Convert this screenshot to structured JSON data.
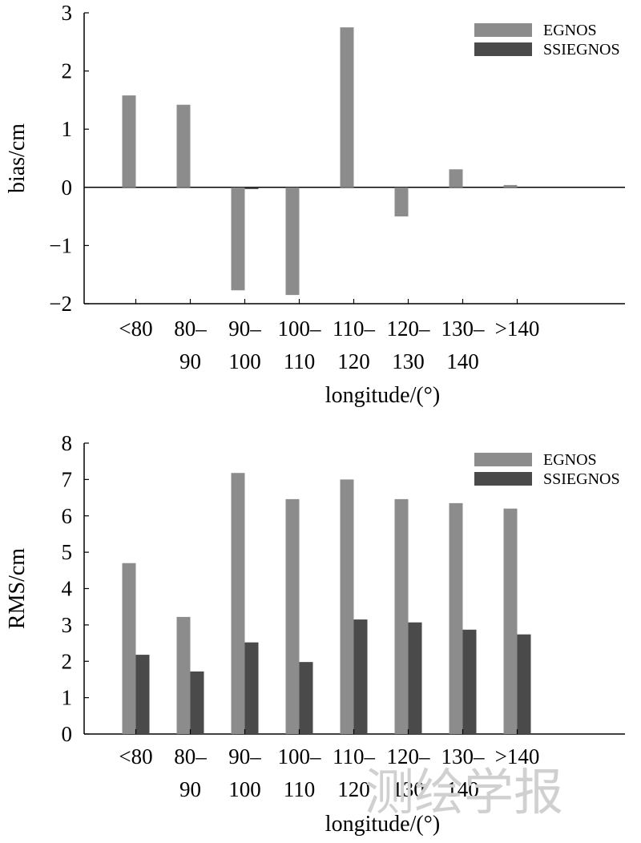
{
  "watermark": "测绘学报",
  "chart_data": [
    {
      "type": "bar",
      "categories": [
        {
          "line1": "<80",
          "line2": ""
        },
        {
          "line1": "80–",
          "line2": "90"
        },
        {
          "line1": "90–",
          "line2": "100"
        },
        {
          "line1": "100–",
          "line2": "110"
        },
        {
          "line1": "110–",
          "line2": "120"
        },
        {
          "line1": "120–",
          "line2": "130"
        },
        {
          "line1": "130–",
          "line2": "140"
        },
        {
          "line1": ">140",
          "line2": ""
        }
      ],
      "series": [
        {
          "name": "EGNOS",
          "color": "#8c8c8c",
          "values": [
            1.58,
            1.42,
            -1.77,
            -1.85,
            2.75,
            -0.5,
            0.31,
            0.04
          ]
        },
        {
          "name": "SSIEGNOS",
          "color": "#4a4a4a",
          "values": [
            0,
            0,
            -0.03,
            0,
            0,
            0,
            0,
            0
          ]
        }
      ],
      "xlabel": "longitude/(°)",
      "ylabel": "bias/cm",
      "ylim": [
        -2,
        3
      ],
      "yticks": [
        "−2",
        "−1",
        "0",
        "1",
        "2",
        "3"
      ],
      "zero_line": true,
      "legend": "top-right"
    },
    {
      "type": "bar",
      "categories": [
        {
          "line1": "<80",
          "line2": ""
        },
        {
          "line1": "80–",
          "line2": "90"
        },
        {
          "line1": "90–",
          "line2": "100"
        },
        {
          "line1": "100–",
          "line2": "110"
        },
        {
          "line1": "110–",
          "line2": "120"
        },
        {
          "line1": "120–",
          "line2": "130"
        },
        {
          "line1": "130–",
          "line2": "140"
        },
        {
          "line1": ">140",
          "line2": ""
        }
      ],
      "series": [
        {
          "name": "EGNOS",
          "color": "#8c8c8c",
          "values": [
            4.7,
            3.22,
            7.18,
            6.46,
            7.0,
            6.46,
            6.35,
            6.2
          ]
        },
        {
          "name": "SSIEGNOS",
          "color": "#4a4a4a",
          "values": [
            2.18,
            1.72,
            2.52,
            1.98,
            3.15,
            3.07,
            2.87,
            2.74
          ]
        }
      ],
      "xlabel": "longitude/(°)",
      "ylabel": "RMS/cm",
      "ylim": [
        0,
        8
      ],
      "yticks": [
        "0",
        "1",
        "2",
        "3",
        "4",
        "5",
        "6",
        "7",
        "8"
      ],
      "zero_line": false,
      "legend": "top-right"
    }
  ]
}
